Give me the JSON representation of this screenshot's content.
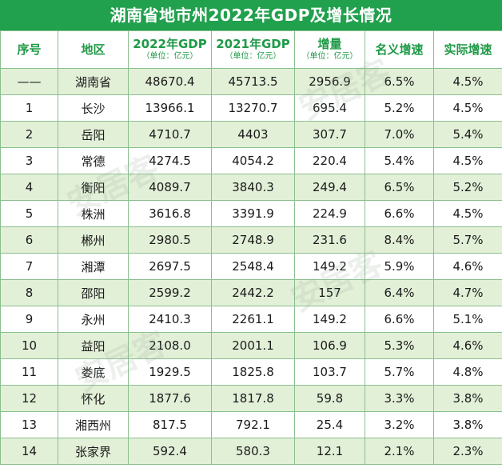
{
  "title": "湖南省地市州2022年GDP及增长情况",
  "headers": [
    {
      "main": "序号",
      "unit": ""
    },
    {
      "main": "地区",
      "unit": ""
    },
    {
      "main": "2022年GDP",
      "unit": "（单位：亿元）"
    },
    {
      "main": "2021年GDP",
      "unit": "（单位：亿元）"
    },
    {
      "main": "增量",
      "unit": "（单位：亿元）"
    },
    {
      "main": "名义增速",
      "unit": ""
    },
    {
      "main": "实际增速",
      "unit": ""
    }
  ],
  "rows": [
    [
      "——",
      "湖南省",
      "48670.4",
      "45713.5",
      "2956.9",
      "6.5%",
      "4.5%"
    ],
    [
      "1",
      "长沙",
      "13966.1",
      "13270.7",
      "695.4",
      "5.2%",
      "4.5%"
    ],
    [
      "2",
      "岳阳",
      "4710.7",
      "4403",
      "307.7",
      "7.0%",
      "5.4%"
    ],
    [
      "3",
      "常德",
      "4274.5",
      "4054.2",
      "220.4",
      "5.4%",
      "4.5%"
    ],
    [
      "4",
      "衡阳",
      "4089.7",
      "3840.3",
      "249.4",
      "6.5%",
      "5.2%"
    ],
    [
      "5",
      "株洲",
      "3616.8",
      "3391.9",
      "224.9",
      "6.6%",
      "4.5%"
    ],
    [
      "6",
      "郴州",
      "2980.5",
      "2748.9",
      "231.6",
      "8.4%",
      "5.7%"
    ],
    [
      "7",
      "湘潭",
      "2697.5",
      "2548.4",
      "149.2",
      "5.9%",
      "4.6%"
    ],
    [
      "8",
      "邵阳",
      "2599.2",
      "2442.2",
      "157",
      "6.4%",
      "4.7%"
    ],
    [
      "9",
      "永州",
      "2410.3",
      "2261.1",
      "149.2",
      "6.6%",
      "5.1%"
    ],
    [
      "10",
      "益阳",
      "2108.0",
      "2001.1",
      "106.9",
      "5.3%",
      "4.6%"
    ],
    [
      "11",
      "娄底",
      "1929.5",
      "1825.8",
      "103.7",
      "5.7%",
      "4.8%"
    ],
    [
      "12",
      "怀化",
      "1877.6",
      "1817.8",
      "59.8",
      "3.3%",
      "3.8%"
    ],
    [
      "13",
      "湘西州",
      "817.5",
      "792.1",
      "25.4",
      "3.2%",
      "3.8%"
    ],
    [
      "14",
      "张家界",
      "592.4",
      "580.3",
      "12.1",
      "2.1%",
      "2.3%"
    ]
  ],
  "watermark_text": "安居客"
}
